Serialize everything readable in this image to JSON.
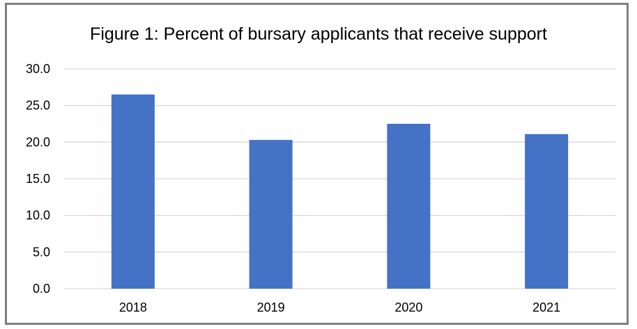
{
  "chart_data": {
    "type": "bar",
    "title": "Figure 1: Percent of bursary applicants that receive support",
    "xlabel": "",
    "ylabel": "",
    "categories": [
      "2018",
      "2019",
      "2020",
      "2021"
    ],
    "series": [
      {
        "values": [
          26.5,
          20.3,
          22.5,
          21.1
        ],
        "color": "#4472c4"
      }
    ],
    "ylim": [
      0,
      30
    ],
    "yticks": [
      "0.0",
      "5.0",
      "10.0",
      "15.0",
      "20.0",
      "25.0",
      "30.0"
    ],
    "grid": true,
    "gridColor": "#d9d9d9",
    "legend": "none"
  }
}
